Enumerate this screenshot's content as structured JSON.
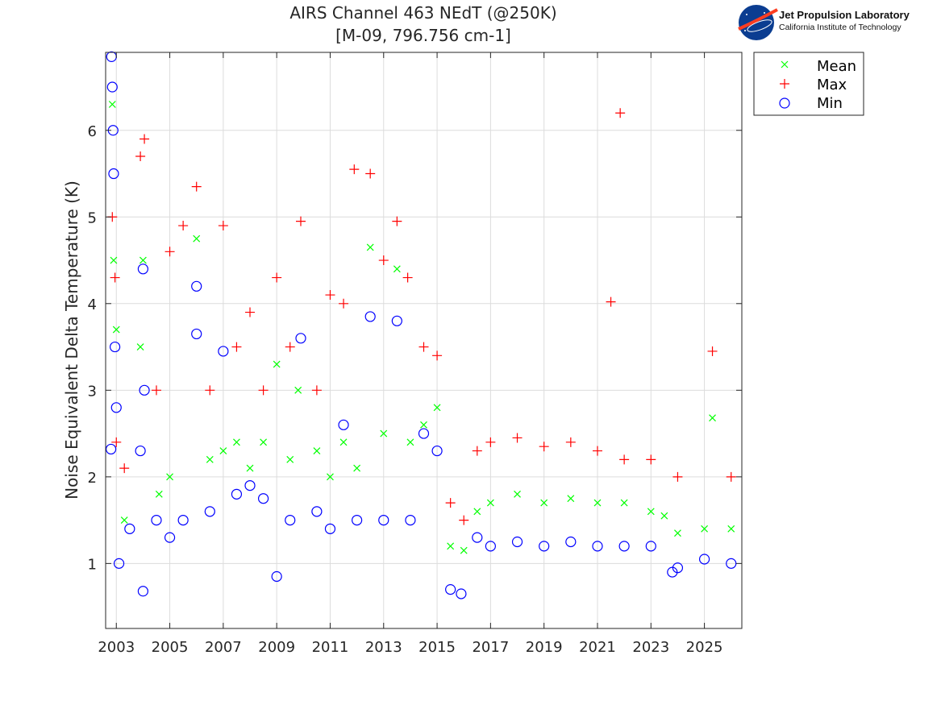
{
  "chart_data": {
    "type": "scatter",
    "title": "AIRS Channel 463 NEdT (@250K)",
    "subtitle": "[M-09, 796.756 cm-1]",
    "xlabel": "",
    "ylabel": "Noise Equivalent Delta Temperature (K)",
    "xlim": [
      2002.6,
      2026.4
    ],
    "ylim": [
      0.25,
      6.9
    ],
    "x_ticks": [
      2003,
      2005,
      2007,
      2009,
      2011,
      2013,
      2015,
      2017,
      2019,
      2021,
      2023,
      2025
    ],
    "x_tick_labels": [
      "2003",
      "2005",
      "2007",
      "2009",
      "2011",
      "2013",
      "2015",
      "2017",
      "2019",
      "2021",
      "2023",
      "2025"
    ],
    "y_ticks": [
      1,
      2,
      3,
      4,
      5,
      6
    ],
    "y_tick_labels": [
      "1",
      "2",
      "3",
      "4",
      "5",
      "6"
    ],
    "grid": true,
    "legend_position": "outside-top-right",
    "series": [
      {
        "name": "Mean",
        "marker": "x",
        "color": "#00ff00",
        "points": [
          [
            2002.85,
            6.3
          ],
          [
            2002.9,
            4.5
          ],
          [
            2003.0,
            3.7
          ],
          [
            2003.3,
            1.5
          ],
          [
            2003.9,
            3.5
          ],
          [
            2004.0,
            4.5
          ],
          [
            2004.6,
            1.8
          ],
          [
            2005.0,
            2.0
          ],
          [
            2006.0,
            4.75
          ],
          [
            2006.5,
            2.2
          ],
          [
            2007.0,
            2.3
          ],
          [
            2007.5,
            2.4
          ],
          [
            2008.0,
            2.1
          ],
          [
            2008.5,
            2.4
          ],
          [
            2009.0,
            3.3
          ],
          [
            2009.5,
            2.2
          ],
          [
            2009.8,
            3.0
          ],
          [
            2010.5,
            2.3
          ],
          [
            2011.0,
            2.0
          ],
          [
            2011.5,
            2.4
          ],
          [
            2012.0,
            2.1
          ],
          [
            2012.5,
            4.65
          ],
          [
            2013.0,
            2.5
          ],
          [
            2013.5,
            4.4
          ],
          [
            2014.0,
            2.4
          ],
          [
            2014.5,
            2.6
          ],
          [
            2015.0,
            2.8
          ],
          [
            2015.5,
            1.2
          ],
          [
            2016.0,
            1.15
          ],
          [
            2016.5,
            1.6
          ],
          [
            2017.0,
            1.7
          ],
          [
            2018.0,
            1.8
          ],
          [
            2019.0,
            1.7
          ],
          [
            2020.0,
            1.75
          ],
          [
            2021.0,
            1.7
          ],
          [
            2022.0,
            1.7
          ],
          [
            2023.0,
            1.6
          ],
          [
            2023.5,
            1.55
          ],
          [
            2024.0,
            1.35
          ],
          [
            2025.0,
            1.4
          ],
          [
            2025.3,
            2.68
          ],
          [
            2026.0,
            1.4
          ]
        ]
      },
      {
        "name": "Max",
        "marker": "+",
        "color": "#ff0000",
        "points": [
          [
            2002.85,
            5.0
          ],
          [
            2002.95,
            4.3
          ],
          [
            2003.0,
            2.4
          ],
          [
            2003.3,
            2.1
          ],
          [
            2003.9,
            5.7
          ],
          [
            2004.05,
            5.9
          ],
          [
            2004.5,
            3.0
          ],
          [
            2005.0,
            4.6
          ],
          [
            2005.5,
            4.9
          ],
          [
            2006.0,
            5.35
          ],
          [
            2006.5,
            3.0
          ],
          [
            2007.0,
            4.9
          ],
          [
            2007.5,
            3.5
          ],
          [
            2008.0,
            3.9
          ],
          [
            2008.5,
            3.0
          ],
          [
            2009.0,
            4.3
          ],
          [
            2009.5,
            3.5
          ],
          [
            2009.9,
            4.95
          ],
          [
            2010.5,
            3.0
          ],
          [
            2011.0,
            4.1
          ],
          [
            2011.5,
            4.0
          ],
          [
            2011.9,
            5.55
          ],
          [
            2012.5,
            5.5
          ],
          [
            2013.0,
            4.5
          ],
          [
            2013.5,
            4.95
          ],
          [
            2013.9,
            4.3
          ],
          [
            2014.5,
            3.5
          ],
          [
            2015.0,
            3.4
          ],
          [
            2015.5,
            1.7
          ],
          [
            2016.0,
            1.5
          ],
          [
            2016.5,
            2.3
          ],
          [
            2017.0,
            2.4
          ],
          [
            2018.0,
            2.45
          ],
          [
            2019.0,
            2.35
          ],
          [
            2020.0,
            2.4
          ],
          [
            2021.0,
            2.3
          ],
          [
            2021.5,
            4.02
          ],
          [
            2021.85,
            6.2
          ],
          [
            2022.0,
            2.2
          ],
          [
            2023.0,
            2.2
          ],
          [
            2024.0,
            2.0
          ],
          [
            2025.3,
            3.45
          ],
          [
            2026.0,
            2.0
          ]
        ]
      },
      {
        "name": "Min",
        "marker": "o",
        "color": "#0000ff",
        "points": [
          [
            2002.82,
            6.85
          ],
          [
            2002.85,
            6.5
          ],
          [
            2002.88,
            6.0
          ],
          [
            2002.9,
            5.5
          ],
          [
            2002.8,
            2.32
          ],
          [
            2002.95,
            3.5
          ],
          [
            2003.0,
            2.8
          ],
          [
            2003.1,
            1.0
          ],
          [
            2003.5,
            1.4
          ],
          [
            2003.9,
            2.3
          ],
          [
            2004.0,
            4.4
          ],
          [
            2004.05,
            3.0
          ],
          [
            2004.0,
            0.68
          ],
          [
            2004.5,
            1.5
          ],
          [
            2005.0,
            1.3
          ],
          [
            2005.5,
            1.5
          ],
          [
            2006.0,
            4.2
          ],
          [
            2006.0,
            3.65
          ],
          [
            2006.5,
            1.6
          ],
          [
            2007.0,
            3.45
          ],
          [
            2007.5,
            1.8
          ],
          [
            2008.0,
            1.9
          ],
          [
            2008.5,
            1.75
          ],
          [
            2009.0,
            0.85
          ],
          [
            2009.5,
            1.5
          ],
          [
            2009.9,
            3.6
          ],
          [
            2010.5,
            1.6
          ],
          [
            2011.0,
            1.4
          ],
          [
            2011.5,
            2.6
          ],
          [
            2012.0,
            1.5
          ],
          [
            2012.5,
            3.85
          ],
          [
            2013.0,
            1.5
          ],
          [
            2013.5,
            3.8
          ],
          [
            2014.0,
            1.5
          ],
          [
            2014.5,
            2.5
          ],
          [
            2015.0,
            2.3
          ],
          [
            2015.5,
            0.7
          ],
          [
            2015.9,
            0.65
          ],
          [
            2016.5,
            1.3
          ],
          [
            2017.0,
            1.2
          ],
          [
            2018.0,
            1.25
          ],
          [
            2019.0,
            1.2
          ],
          [
            2020.0,
            1.25
          ],
          [
            2021.0,
            1.2
          ],
          [
            2022.0,
            1.2
          ],
          [
            2023.0,
            1.2
          ],
          [
            2023.8,
            0.9
          ],
          [
            2024.0,
            0.95
          ],
          [
            2025.0,
            1.05
          ],
          [
            2026.0,
            1.0
          ]
        ]
      }
    ]
  },
  "logo": {
    "name": "Jet Propulsion Laboratory",
    "subtitle": "California Institute of Technology",
    "badge_text": "NASA"
  },
  "colors": {
    "mean": "#00ff00",
    "max": "#ff0000",
    "min": "#0000ff",
    "grid": "#dcdcdc",
    "axis": "#262626"
  }
}
